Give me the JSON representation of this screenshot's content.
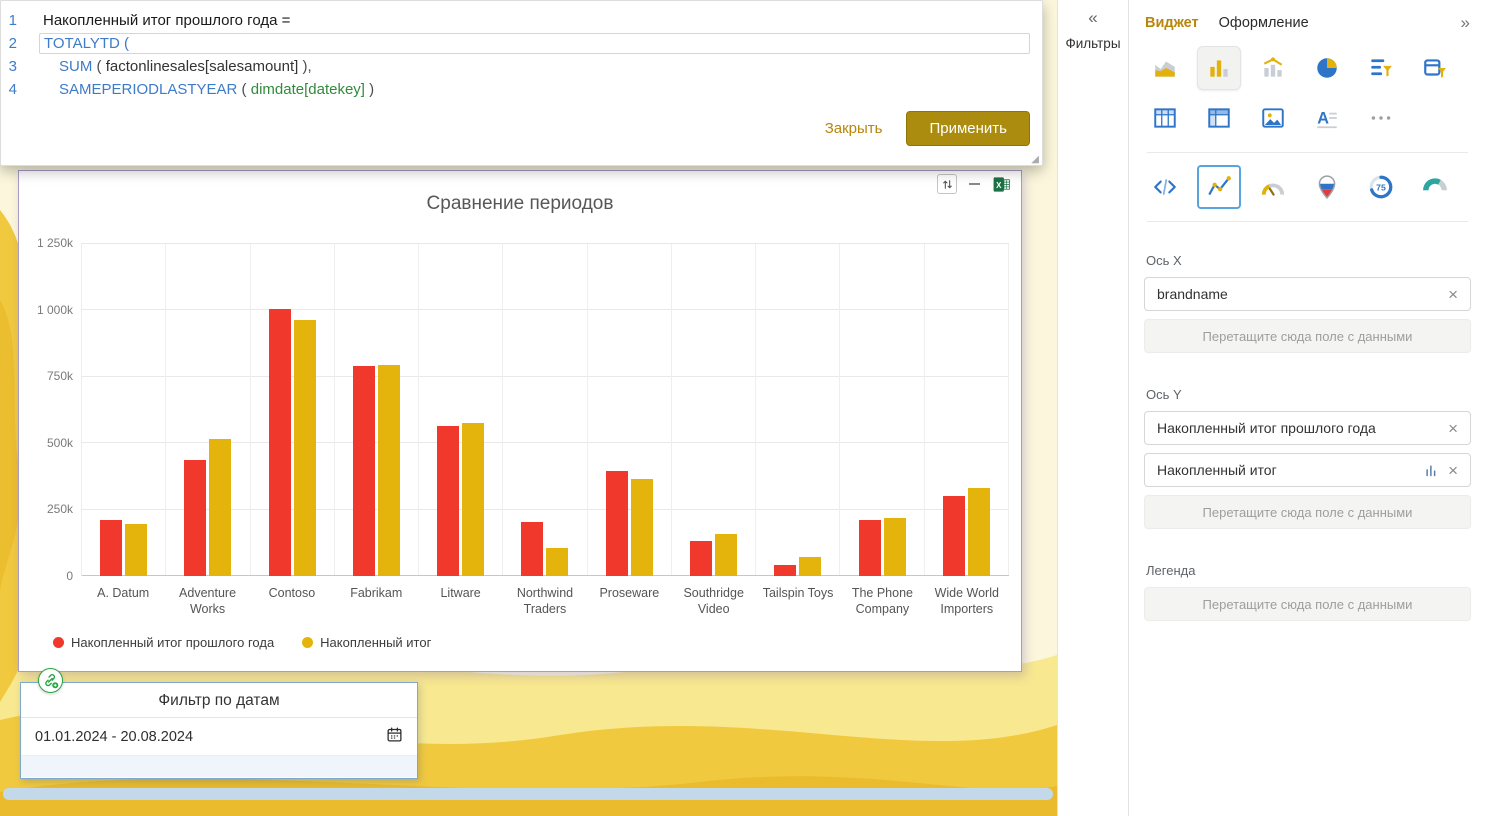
{
  "formula_editor": {
    "lines": [
      {
        "num": "1",
        "segments": [
          {
            "text": "Накопленный итог прошлого года =",
            "color": "text"
          }
        ]
      },
      {
        "num": "2",
        "boxed": true,
        "segments": [
          {
            "text": "TOTALYTD (",
            "color": "func"
          }
        ]
      },
      {
        "num": "3",
        "indent": true,
        "segments": [
          {
            "text": "SUM",
            "color": "func"
          },
          {
            "text": " ( ",
            "color": "punct"
          },
          {
            "text": "factonlinesales[salesamount]",
            "color": "ref"
          },
          {
            "text": " ),",
            "color": "punct"
          }
        ]
      },
      {
        "num": "4",
        "indent": true,
        "segments": [
          {
            "text": "SAMEPERIODLASTYEAR",
            "color": "func"
          },
          {
            "text": " ( ",
            "color": "punct"
          },
          {
            "text": "dimdate[datekey]",
            "color": "green"
          },
          {
            "text": " )",
            "color": "punct"
          }
        ]
      }
    ],
    "close_label": "Закрыть",
    "apply_label": "Применить"
  },
  "chart_data": {
    "type": "bar",
    "title": "Сравнение периодов",
    "categories": [
      "A. Datum",
      "Adventure Works",
      "Contoso",
      "Fabrikam",
      "Litware",
      "Northwind Traders",
      "Proseware",
      "Southridge Video",
      "Tailspin Toys",
      "The Phone Company",
      "Wide World Importers"
    ],
    "series": [
      {
        "name": "Накопленный итог прошлого года",
        "color": "#F0382D",
        "values": [
          210,
          435,
          1005,
          790,
          565,
          205,
          395,
          130,
          40,
          210,
          300
        ]
      },
      {
        "name": "Накопленный итог",
        "color": "#E5B40C",
        "values": [
          195,
          515,
          965,
          795,
          575,
          105,
          365,
          160,
          70,
          220,
          330
        ]
      }
    ],
    "unit": "k (thousands)",
    "y_ticks": [
      "0",
      "250k",
      "500k",
      "750k",
      "1 000k",
      "1 250k"
    ],
    "ylim": [
      0,
      1250
    ],
    "grid": true,
    "legend_position": "bottom-left"
  },
  "chart_toolbar": {
    "icons": [
      "sort-icon",
      "minimize-icon",
      "excel-export-icon"
    ]
  },
  "date_filter": {
    "title": "Фильтр по датам",
    "value": "01.01.2024 - 20.08.2024"
  },
  "filters_panel": {
    "label": "Фильтры",
    "collapse_icon": "«"
  },
  "widget_panel": {
    "tabs": [
      {
        "label": "Виджет",
        "active": true
      },
      {
        "label": "Оформление",
        "active": false
      }
    ],
    "expand_icon": "»",
    "remove_icon": "×",
    "progress_value": "75",
    "icon_rows": [
      [
        "area-chart",
        "column-chart",
        "combo-chart",
        "pie-chart",
        "table-filter",
        "calendar-filter"
      ],
      [
        "table",
        "pivot-table",
        "image",
        "text-block",
        "more"
      ],
      [
        "code",
        "line-chart",
        "gauge",
        "map",
        "progress-circle",
        "semi-donut"
      ]
    ],
    "selected_icon": "column-chart",
    "outlined_icon": "line-chart",
    "sections": [
      {
        "label": "Ось X",
        "fields": [
          {
            "name": "brandname"
          }
        ],
        "placeholder": "Перетащите сюда поле с данными"
      },
      {
        "label": "Ось Y",
        "fields": [
          {
            "name": "Накопленный итог прошлого года"
          },
          {
            "name": "Накопленный итог",
            "measure_icon": true
          }
        ],
        "placeholder": "Перетащите сюда поле с данными"
      },
      {
        "label": "Легенда",
        "fields": [],
        "placeholder": "Перетащите сюда поле с данными"
      }
    ]
  },
  "colors": {
    "accent_gold": "#B8860B",
    "apply_button": "#AC8C0F",
    "series_red": "#F0382D",
    "series_gold": "#E5B40C",
    "excel_green": "#1E7145",
    "selection_purple": "#A79BC8",
    "selection_blue": "#7FA8D0",
    "canvas_yellow": "#F1C93F"
  }
}
